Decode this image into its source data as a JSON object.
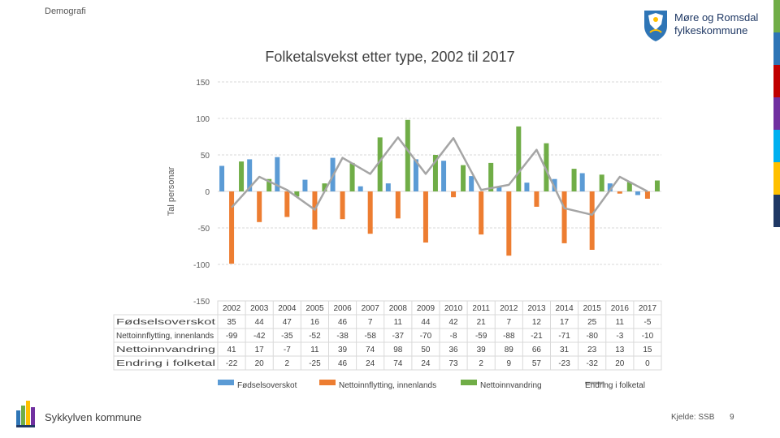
{
  "header": {
    "section": "Demografi",
    "org_line1": "Møre og Romsdal",
    "org_line2": "fylkeskommune"
  },
  "footer": {
    "municipality": "Sykkylven kommune",
    "source": "Kjelde: SSB",
    "page_number": "9"
  },
  "colors": {
    "accent_bars": [
      "#70ad47",
      "#2e75b6",
      "#c00000",
      "#7030a0",
      "#00b0f0",
      "#ffc000",
      "#1f3864"
    ]
  },
  "chart_data": {
    "type": "bar",
    "title": "Folketalsvekst etter type, 2002 til 2017",
    "ylabel": "Tal personar",
    "xlabel": "",
    "ylim": [
      -150,
      150
    ],
    "yticks": [
      150,
      100,
      50,
      0,
      -50,
      -100,
      -150
    ],
    "grid": true,
    "legend": "bottom",
    "categories": [
      "2002",
      "2003",
      "2004",
      "2005",
      "2006",
      "2007",
      "2008",
      "2009",
      "2010",
      "2011",
      "2012",
      "2013",
      "2014",
      "2015",
      "2016",
      "2017"
    ],
    "series": [
      {
        "name": "Fødselsoverskot",
        "kind": "bar",
        "color": "#5b9bd5",
        "values": [
          35,
          44,
          47,
          16,
          46,
          7,
          11,
          44,
          42,
          21,
          7,
          12,
          17,
          25,
          11,
          -5
        ]
      },
      {
        "name": "Nettoinnflytting, innenlands",
        "kind": "bar",
        "color": "#ed7d31",
        "values": [
          -99,
          -42,
          -35,
          -52,
          -38,
          -58,
          -37,
          -70,
          -8,
          -59,
          -88,
          -21,
          -71,
          -80,
          -3,
          -10
        ]
      },
      {
        "name": "Nettoinnvandring",
        "kind": "bar",
        "color": "#70ad47",
        "values": [
          41,
          17,
          -7,
          11,
          39,
          74,
          98,
          50,
          36,
          39,
          89,
          66,
          31,
          23,
          13,
          15
        ]
      },
      {
        "name": "Endring i folketal",
        "kind": "line",
        "color": "#a5a5a5",
        "values": [
          -22,
          20,
          2,
          -25,
          46,
          24,
          74,
          24,
          73,
          2,
          9,
          57,
          -23,
          -32,
          20,
          0
        ]
      }
    ]
  }
}
